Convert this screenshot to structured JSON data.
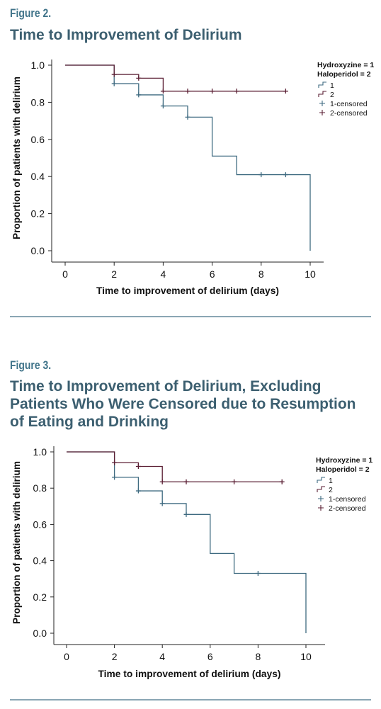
{
  "figures": [
    {
      "label": "Figure 2.",
      "title": "Time to Improvement of Delirium"
    },
    {
      "label": "Figure 3.",
      "title_lines": [
        "Time to Improvement of Delirium, Excluding",
        "Patients Who Were Censored due to Resumption",
        "of Eating and Drinking"
      ]
    }
  ],
  "chart_data": [
    {
      "type": "line",
      "step": true,
      "xlabel": "Time to improvement of delirium (days)",
      "ylabel": "Proportion of patients with delirium",
      "xlim": [
        0,
        10
      ],
      "ylim": [
        0,
        1
      ],
      "xticks": [
        "0",
        "2",
        "4",
        "6",
        "8",
        "10"
      ],
      "yticks": [
        "0.0",
        "0.2",
        "0.4",
        "0.6",
        "0.8",
        "1.0"
      ],
      "legend": {
        "title_lines": [
          "Hydroxyzine = 1",
          "Haloperidol = 2"
        ],
        "entries": [
          "1",
          "2",
          "1-censored",
          "2-censored"
        ],
        "placement": "top-right"
      },
      "series": [
        {
          "name": "1",
          "color": "#3e6a80",
          "steps": [
            [
              0,
              1.0
            ],
            [
              2,
              0.9
            ],
            [
              3,
              0.84
            ],
            [
              4,
              0.78
            ],
            [
              5,
              0.72
            ],
            [
              6,
              0.51
            ],
            [
              7,
              0.41
            ],
            [
              10,
              0.0
            ]
          ],
          "censored": [
            [
              2,
              0.9
            ],
            [
              3,
              0.84
            ],
            [
              4,
              0.78
            ],
            [
              5,
              0.72
            ],
            [
              8,
              0.41
            ],
            [
              9,
              0.41
            ]
          ]
        },
        {
          "name": "2",
          "color": "#5a1e33",
          "steps": [
            [
              0,
              1.0
            ],
            [
              2,
              0.95
            ],
            [
              3,
              0.93
            ],
            [
              4,
              0.86
            ]
          ],
          "end": 9,
          "censored": [
            [
              2,
              0.95
            ],
            [
              3,
              0.93
            ],
            [
              4,
              0.86
            ],
            [
              5,
              0.86
            ],
            [
              6,
              0.86
            ],
            [
              7,
              0.86
            ],
            [
              9,
              0.86
            ]
          ]
        }
      ]
    },
    {
      "type": "line",
      "step": true,
      "xlabel": "Time to improvement of delirium (days)",
      "ylabel": "Proportion of patients with delirium",
      "xlim": [
        0,
        10
      ],
      "ylim": [
        0,
        1
      ],
      "xticks": [
        "0",
        "2",
        "4",
        "6",
        "8",
        "10"
      ],
      "yticks": [
        "0.0",
        "0.2",
        "0.4",
        "0.6",
        "0.8",
        "1.0"
      ],
      "legend": {
        "title_lines": [
          "Hydroxyzine = 1",
          "Haloperidol = 2"
        ],
        "entries": [
          "1",
          "2",
          "1-censored",
          "2-censored"
        ],
        "placement": "top-right"
      },
      "series": [
        {
          "name": "1",
          "color": "#3e6a80",
          "steps": [
            [
              0,
              1.0
            ],
            [
              2,
              0.86
            ],
            [
              3,
              0.785
            ],
            [
              4,
              0.715
            ],
            [
              5,
              0.655
            ],
            [
              6,
              0.44
            ],
            [
              7,
              0.33
            ],
            [
              10,
              0.0
            ]
          ],
          "censored": [
            [
              2,
              0.86
            ],
            [
              3,
              0.785
            ],
            [
              4,
              0.715
            ],
            [
              5,
              0.655
            ],
            [
              8,
              0.33
            ]
          ]
        },
        {
          "name": "2",
          "color": "#5a1e33",
          "steps": [
            [
              0,
              1.0
            ],
            [
              2,
              0.94
            ],
            [
              3,
              0.92
            ],
            [
              4,
              0.835
            ]
          ],
          "end": 9,
          "censored": [
            [
              2,
              0.94
            ],
            [
              3,
              0.92
            ],
            [
              4,
              0.835
            ],
            [
              5,
              0.835
            ],
            [
              7,
              0.835
            ],
            [
              9,
              0.835
            ]
          ]
        }
      ]
    }
  ]
}
